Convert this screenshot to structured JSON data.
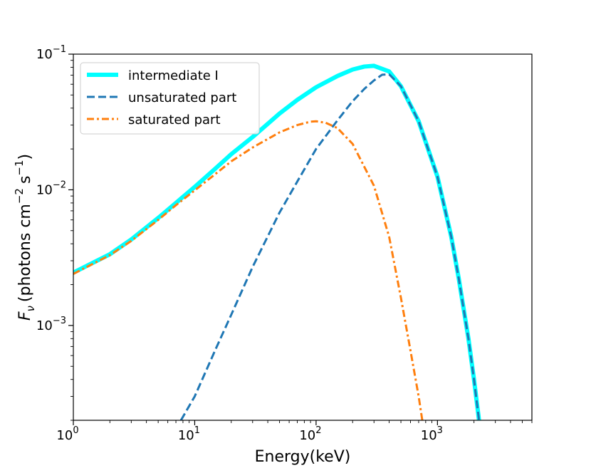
{
  "chart_data": {
    "type": "line",
    "title": "",
    "xlabel": "Energy(keV)",
    "ylabel": {
      "symbol": "F",
      "subscript": "ν",
      "text": "(photons cm",
      "exp1": "−2",
      "mid": "s",
      "exp2": "−1",
      "close": ")"
    },
    "xscale": "log",
    "yscale": "log",
    "xlim": [
      1,
      6000
    ],
    "ylim": [
      0.0002,
      0.1
    ],
    "xticks": [
      {
        "value": 1,
        "base": "10",
        "exp": "0"
      },
      {
        "value": 10,
        "base": "10",
        "exp": "1"
      },
      {
        "value": 100,
        "base": "10",
        "exp": "2"
      },
      {
        "value": 1000,
        "base": "10",
        "exp": "3"
      }
    ],
    "yticks": [
      {
        "value": 0.001,
        "base": "10",
        "exp": "−3"
      },
      {
        "value": 0.01,
        "base": "10",
        "exp": "−2"
      },
      {
        "value": 0.1,
        "base": "10",
        "exp": "−1"
      }
    ],
    "legend_position": "top-left",
    "series": [
      {
        "name": "intermediate I",
        "color": "#00ffff",
        "style": "solid",
        "x": [
          1,
          2,
          3,
          5,
          7,
          10,
          15,
          20,
          30,
          50,
          70,
          100,
          150,
          200,
          250,
          300,
          400,
          500,
          700,
          1000,
          1300,
          1500,
          1800,
          2000,
          2200
        ],
        "y": [
          0.00245,
          0.00335,
          0.0043,
          0.0062,
          0.008,
          0.0105,
          0.0145,
          0.0183,
          0.0245,
          0.0365,
          0.046,
          0.057,
          0.069,
          0.077,
          0.081,
          0.082,
          0.0745,
          0.058,
          0.032,
          0.0125,
          0.0045,
          0.0022,
          0.0008,
          0.0004,
          0.0002
        ]
      },
      {
        "name": "unsaturated part",
        "color": "#1f77b4",
        "style": "dashed",
        "x": [
          7.7,
          10,
          15,
          20,
          30,
          50,
          70,
          100,
          150,
          200,
          250,
          300,
          350,
          400,
          500,
          700,
          1000,
          1300,
          1500,
          1800,
          2000,
          2200
        ],
        "y": [
          0.0002,
          0.0003,
          0.00068,
          0.0012,
          0.0027,
          0.0068,
          0.0115,
          0.02,
          0.0325,
          0.045,
          0.0555,
          0.064,
          0.0705,
          0.071,
          0.058,
          0.032,
          0.0125,
          0.0045,
          0.0022,
          0.0008,
          0.0004,
          0.0002
        ]
      },
      {
        "name": "saturated part",
        "color": "#ff7f0e",
        "style": "dashdot",
        "x": [
          1,
          2,
          3,
          5,
          7,
          10,
          15,
          20,
          30,
          50,
          70,
          90,
          100,
          120,
          150,
          200,
          300,
          400,
          500,
          600,
          700,
          750
        ],
        "y": [
          0.0024,
          0.0033,
          0.0042,
          0.006,
          0.0077,
          0.0099,
          0.0132,
          0.0162,
          0.0205,
          0.0265,
          0.03,
          0.0318,
          0.032,
          0.0312,
          0.0285,
          0.0218,
          0.0107,
          0.0045,
          0.0016,
          0.00065,
          0.0003,
          0.0002
        ]
      }
    ]
  }
}
